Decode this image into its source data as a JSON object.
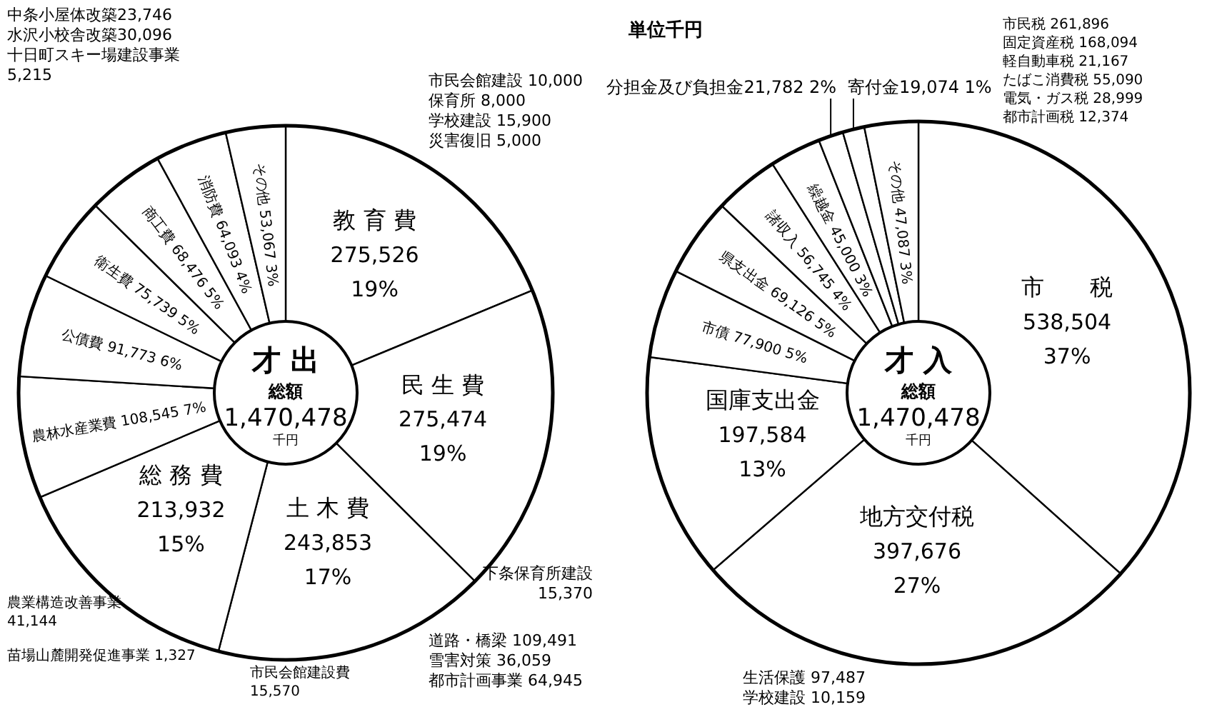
{
  "chart_data": [
    {
      "type": "donut",
      "title": "才 出",
      "subtitle": "総額 1,470,478 千円",
      "categories": [
        "教 育 費",
        "民 生 費",
        "土 木 費",
        "総 務 費",
        "農林水産業費",
        "公債費",
        "衛生費",
        "商工費",
        "消防費",
        "その他"
      ],
      "values": [
        275526,
        275474,
        243853,
        213932,
        108545,
        91773,
        75739,
        68476,
        64093,
        53067
      ],
      "value_labels": [
        "275,526 19%",
        "275,474 19%",
        "243,853 17%",
        "213,932 15%",
        "108,545 7%",
        "91,773 6%",
        "75,739 5%",
        "68,476 5%",
        "64,093 4%",
        "53,067 3%"
      ],
      "colors": [
        "#ffffff",
        "#ffffff",
        "#ffffff",
        "#ffffff",
        "#ffffff",
        "#ffffff",
        "#ffffff",
        "#ffffff",
        "#ffffff",
        "#ffffff"
      ],
      "annotations": [
        "中条小屋体改築23,746\n水沢小校舎改築30,096\n十日町スキー場建設事業\n5,215",
        "下条保育所建設\n15,370",
        "道路・橋梁 109,491\n雪害対策 36,059\n都市計画事業 64,945",
        "市民会館建設費\n15,570",
        "農業構造改善事業\n41,144",
        "苗場山麓開発促進事業 1,327"
      ]
    },
    {
      "type": "donut",
      "title": "才 入",
      "subtitle": "総額 1,470,478 千円",
      "categories": [
        "市　　税",
        "地方交付税",
        "国庫支出金",
        "市債",
        "県支出金",
        "諸収入",
        "繰越金",
        "分担金及び負担金",
        "寄付金",
        "その他"
      ],
      "values": [
        538504,
        397676,
        197584,
        77900,
        69126,
        56745,
        45000,
        21782,
        19074,
        47087
      ],
      "value_labels": [
        "538,504 37%",
        "397,676 27%",
        "197,584 13%",
        "77,900 5%",
        "69,126 5%",
        "56,745 4%",
        "45,000 3%",
        "21,782 2%",
        "19,074 1%",
        "47,087 3%"
      ],
      "colors": [
        "#ffffff",
        "#ffffff",
        "#ffffff",
        "#ffffff",
        "#ffffff",
        "#ffffff",
        "#ffffff",
        "#ffffff",
        "#ffffff",
        "#ffffff"
      ],
      "annotations": [
        "単位千円",
        "市民会館建設 10,000\n保育所 8,000\n学校建設 15,900\n災害復旧 5,000",
        "市民税 261,896\n固定資産税 168,094\n軽自動車税 21,167\nたばこ消費税 55,090\n電気・ガス税 28,999\n都市計画税 12,374",
        "生活保護 97,487\n学校建設 10,159"
      ]
    }
  ]
}
